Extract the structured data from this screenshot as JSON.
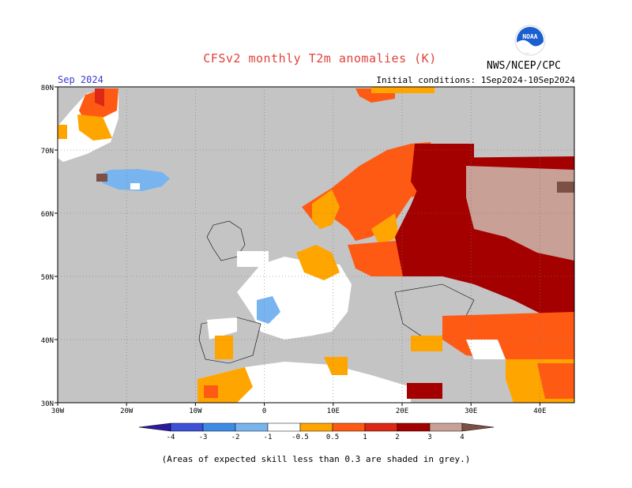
{
  "title": "CFSv2 monthly T2m anomalies (K)",
  "organization": "NWS/NCEP/CPC",
  "logo_text": "NOAA",
  "month": "Sep 2024",
  "initial_conditions": "Initial conditions: 1Sep2024-10Sep2024",
  "footnote": "(Areas of expected skill less than 0.3 are shaded in grey.)",
  "map": {
    "lat_labels": [
      "80N",
      "70N",
      "60N",
      "50N",
      "40N",
      "30N"
    ],
    "lon_labels": [
      "30W",
      "20W",
      "10W",
      "0",
      "10E",
      "20E",
      "30E",
      "40E"
    ],
    "background_color": "#c4c4c4"
  },
  "legend": {
    "labels": [
      "-4",
      "-3",
      "-2",
      "-1",
      "-0.5",
      "0.5",
      "1",
      "2",
      "3",
      "4"
    ],
    "colors": [
      "#2a1aa0",
      "#3c50d8",
      "#3c8ce6",
      "#78b4f0",
      "#ffffff",
      "#ffa500",
      "#ff5a14",
      "#dc2814",
      "#a50000",
      "#c8a096",
      "#7d5046"
    ]
  }
}
